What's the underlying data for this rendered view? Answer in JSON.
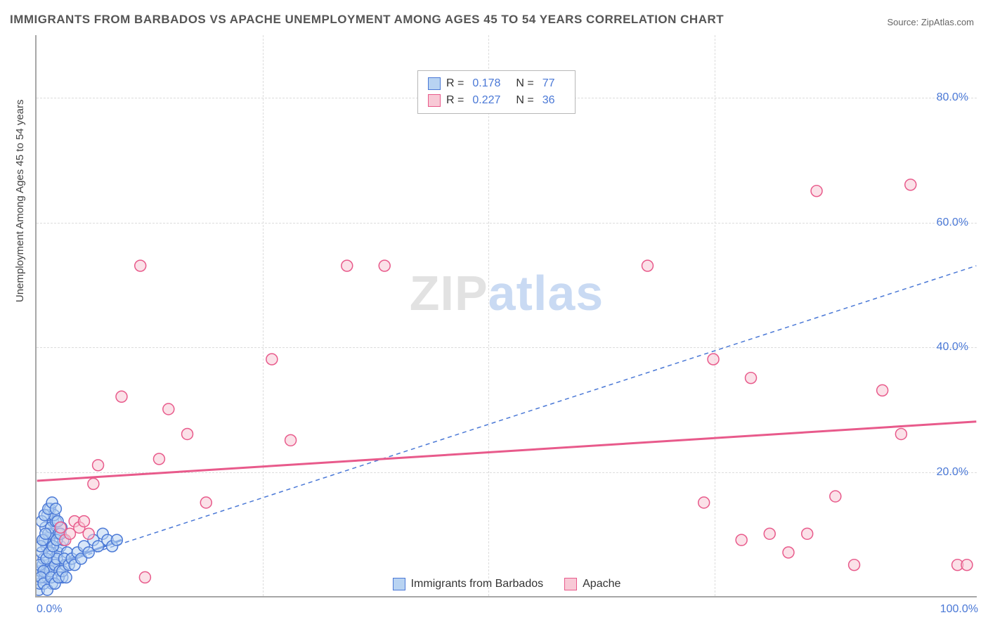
{
  "title": "IMMIGRANTS FROM BARBADOS VS APACHE UNEMPLOYMENT AMONG AGES 45 TO 54 YEARS CORRELATION CHART",
  "source": "Source: ZipAtlas.com",
  "y_axis_label": "Unemployment Among Ages 45 to 54 years",
  "watermark_zip": "ZIP",
  "watermark_atlas": "atlas",
  "chart": {
    "type": "scatter-correlation",
    "xlim": [
      0,
      100
    ],
    "ylim": [
      0,
      90
    ],
    "xticks": [
      0,
      100
    ],
    "xtick_labels": [
      "0.0%",
      "100.0%"
    ],
    "yticks": [
      20,
      40,
      60,
      80
    ],
    "ytick_labels": [
      "20.0%",
      "40.0%",
      "60.0%",
      "80.0%"
    ],
    "x_minor_gridlines": [
      24,
      48,
      72
    ],
    "background_color": "#ffffff",
    "grid_color": "#dcdcdc",
    "axis_color": "#a7a7a7",
    "tick_label_color": "#4a78d6",
    "axis_label_color": "#444444",
    "title_color": "#555555",
    "marker_radius": 8,
    "marker_stroke_width": 1.5,
    "series": [
      {
        "name": "Immigrants from Barbados",
        "fill": "#b8d3f2",
        "stroke": "#4a78d6",
        "fill_opacity": 0.55,
        "trend": {
          "x1": 0,
          "y1": 4,
          "x2": 100,
          "y2": 53,
          "color": "#4a78d6",
          "dash": "6,5",
          "width": 1.5,
          "solid_segment": {
            "x1": 0,
            "y1": 4,
            "x2": 9,
            "y2": 9,
            "width": 3
          }
        },
        "R": "0.178",
        "N": "77",
        "points": [
          [
            0.2,
            1
          ],
          [
            0.3,
            2
          ],
          [
            0.5,
            3
          ],
          [
            0.4,
            4
          ],
          [
            0.6,
            5
          ],
          [
            0.8,
            3
          ],
          [
            1.0,
            4
          ],
          [
            1.2,
            5
          ],
          [
            0.7,
            6
          ],
          [
            1.5,
            7
          ],
          [
            1.0,
            8
          ],
          [
            1.3,
            9
          ],
          [
            1.8,
            6
          ],
          [
            2.0,
            5
          ],
          [
            2.2,
            7
          ],
          [
            1.5,
            10
          ],
          [
            0.9,
            11
          ],
          [
            2.5,
            8
          ],
          [
            1.7,
            12
          ],
          [
            2.8,
            9
          ],
          [
            0.5,
            7
          ],
          [
            1.1,
            3
          ],
          [
            1.4,
            4
          ],
          [
            1.9,
            5
          ],
          [
            2.1,
            6
          ],
          [
            2.4,
            4
          ],
          [
            2.7,
            3
          ],
          [
            3.0,
            5
          ],
          [
            3.2,
            7
          ],
          [
            1.6,
            2
          ],
          [
            0.8,
            9
          ],
          [
            1.2,
            10
          ],
          [
            1.5,
            11
          ],
          [
            2.0,
            12
          ],
          [
            2.3,
            10
          ],
          [
            2.6,
            11
          ],
          [
            0.4,
            8
          ],
          [
            0.6,
            9
          ],
          [
            0.9,
            10
          ],
          [
            1.1,
            13
          ],
          [
            1.4,
            14
          ],
          [
            1.8,
            13
          ],
          [
            2.2,
            12
          ],
          [
            0.3,
            5
          ],
          [
            0.7,
            4
          ],
          [
            1.0,
            6
          ],
          [
            1.3,
            7
          ],
          [
            1.7,
            8
          ],
          [
            2.1,
            9
          ],
          [
            2.5,
            10
          ],
          [
            2.9,
            6
          ],
          [
            0.5,
            12
          ],
          [
            0.8,
            13
          ],
          [
            1.2,
            14
          ],
          [
            1.6,
            15
          ],
          [
            2.0,
            14
          ],
          [
            0.4,
            3
          ],
          [
            0.7,
            2
          ],
          [
            1.1,
            1
          ],
          [
            1.5,
            3
          ],
          [
            1.9,
            2
          ],
          [
            2.3,
            3
          ],
          [
            2.7,
            4
          ],
          [
            3.1,
            3
          ],
          [
            3.4,
            5
          ],
          [
            3.7,
            6
          ],
          [
            4.0,
            5
          ],
          [
            4.3,
            7
          ],
          [
            4.7,
            6
          ],
          [
            5.0,
            8
          ],
          [
            5.5,
            7
          ],
          [
            6.0,
            9
          ],
          [
            6.5,
            8
          ],
          [
            7.0,
            10
          ],
          [
            7.5,
            9
          ],
          [
            8.0,
            8
          ],
          [
            8.5,
            9
          ]
        ]
      },
      {
        "name": "Apache",
        "fill": "#f8c9d6",
        "stroke": "#e85a8b",
        "fill_opacity": 0.55,
        "trend": {
          "x1": 0,
          "y1": 18.5,
          "x2": 100,
          "y2": 28,
          "color": "#e85a8b",
          "dash": "none",
          "width": 3
        },
        "R": "0.227",
        "N": "36",
        "points": [
          [
            2.5,
            11
          ],
          [
            3,
            9
          ],
          [
            3.5,
            10
          ],
          [
            4,
            12
          ],
          [
            4.5,
            11
          ],
          [
            5,
            12
          ],
          [
            5.5,
            10
          ],
          [
            6,
            18
          ],
          [
            6.5,
            21
          ],
          [
            9,
            32
          ],
          [
            11,
            53
          ],
          [
            11.5,
            3
          ],
          [
            13,
            22
          ],
          [
            14,
            30
          ],
          [
            16,
            26
          ],
          [
            18,
            15
          ],
          [
            25,
            38
          ],
          [
            27,
            25
          ],
          [
            33,
            53
          ],
          [
            37,
            53
          ],
          [
            65,
            53
          ],
          [
            71,
            15
          ],
          [
            72,
            38
          ],
          [
            75,
            9
          ],
          [
            76,
            35
          ],
          [
            78,
            10
          ],
          [
            80,
            7
          ],
          [
            82,
            10
          ],
          [
            83,
            65
          ],
          [
            85,
            16
          ],
          [
            87,
            5
          ],
          [
            90,
            33
          ],
          [
            92,
            26
          ],
          [
            93,
            66
          ],
          [
            98,
            5
          ],
          [
            99,
            5
          ]
        ]
      }
    ]
  },
  "legend_top": {
    "R_label": "R =",
    "N_label": "N ="
  }
}
